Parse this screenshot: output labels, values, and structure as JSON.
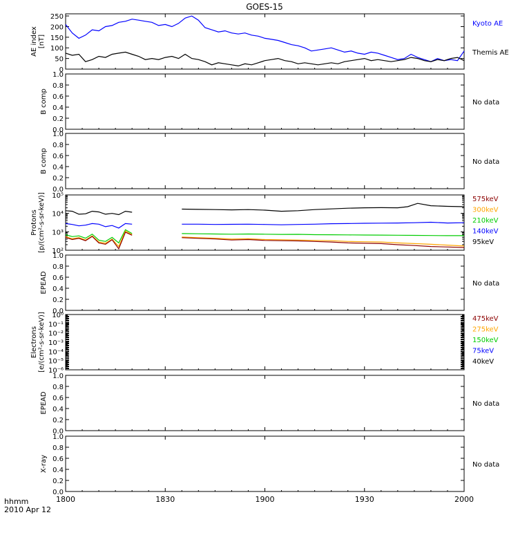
{
  "title": "GOES-15",
  "footer": {
    "time_label": "hhmm",
    "date_label": "2010 Apr 12"
  },
  "x_axis": {
    "range": [
      0,
      120
    ],
    "tick_labels": [
      "1800",
      "1830",
      "1900",
      "1930",
      "2000"
    ],
    "tick_values": [
      0,
      30,
      60,
      90,
      120
    ]
  },
  "panels": [
    {
      "id": "ae",
      "ylabel": [
        "AE index",
        "[nT]"
      ],
      "yscale": "linear",
      "ylim": [
        0,
        260
      ],
      "yticks": [
        0,
        50,
        100,
        150,
        200,
        250
      ],
      "ytick_labels": [
        "0",
        "50",
        "100",
        "150",
        "200",
        "250"
      ],
      "legend": [
        {
          "label": "Kyoto AE",
          "color": "#0000ff"
        },
        {
          "label": "Themis AE",
          "color": "#000000"
        }
      ],
      "no_data": ""
    },
    {
      "id": "b1",
      "ylabel": [
        "B comp"
      ],
      "yscale": "linear",
      "ylim": [
        0,
        1
      ],
      "yticks": [
        0,
        0.2,
        0.4,
        0.6,
        0.8,
        1
      ],
      "ytick_labels": [
        "0.0",
        "0.2",
        "0.4",
        "0.6",
        "0.8",
        "1.0"
      ],
      "legend": [],
      "no_data": "No data"
    },
    {
      "id": "b2",
      "ylabel": [
        "B comp"
      ],
      "yscale": "linear",
      "ylim": [
        0,
        1
      ],
      "yticks": [
        0,
        0.2,
        0.4,
        0.6,
        0.8,
        1
      ],
      "ytick_labels": [
        "0.0",
        "0.2",
        "0.4",
        "0.6",
        "0.8",
        "1.0"
      ],
      "legend": [],
      "no_data": "No data"
    },
    {
      "id": "protons",
      "ylabel": [
        "Protons",
        "[p/(cm²-s-sr-keV)]"
      ],
      "yscale": "log",
      "ylim": [
        100,
        100000
      ],
      "yticks": [
        100,
        1000,
        10000,
        100000
      ],
      "ytick_labels": [
        "10²",
        "10³",
        "10⁴",
        "10⁵"
      ],
      "legend": [
        {
          "label": "575keV",
          "color": "#8b0000"
        },
        {
          "label": "300keV",
          "color": "#ffa500"
        },
        {
          "label": "210keV",
          "color": "#00cc00"
        },
        {
          "label": "140keV",
          "color": "#0000ff"
        },
        {
          "label": "95keV",
          "color": "#000000"
        }
      ],
      "no_data": ""
    },
    {
      "id": "epead1",
      "ylabel": [
        "EPEAD"
      ],
      "yscale": "linear",
      "ylim": [
        0,
        1
      ],
      "yticks": [
        0,
        0.2,
        0.4,
        0.6,
        0.8,
        1
      ],
      "ytick_labels": [
        "0.0",
        "0.2",
        "0.4",
        "0.6",
        "0.8",
        "1.0"
      ],
      "legend": [],
      "no_data": "No data"
    },
    {
      "id": "electrons",
      "ylabel": [
        "Electrons",
        "[e/(cm²-s-sr-keV)]"
      ],
      "yscale": "log",
      "ylim": [
        1e-06,
        1
      ],
      "yticks": [
        1e-06,
        1e-05,
        0.0001,
        0.001,
        0.01,
        0.1,
        1
      ],
      "ytick_labels": [
        "10⁻⁶",
        "10⁻⁵",
        "10⁻⁴",
        "10⁻³",
        "10⁻²",
        "10⁻¹",
        "10⁰"
      ],
      "legend": [
        {
          "label": "475keV",
          "color": "#8b0000"
        },
        {
          "label": "275keV",
          "color": "#ffa500"
        },
        {
          "label": "150keV",
          "color": "#00cc00"
        },
        {
          "label": "75keV",
          "color": "#0000ff"
        },
        {
          "label": "40keV",
          "color": "#000000"
        }
      ],
      "no_data": ""
    },
    {
      "id": "epead2",
      "ylabel": [
        "EPEAD"
      ],
      "yscale": "linear",
      "ylim": [
        0,
        1
      ],
      "yticks": [
        0,
        0.2,
        0.4,
        0.6,
        0.8,
        1
      ],
      "ytick_labels": [
        "0.0",
        "0.2",
        "0.4",
        "0.6",
        "0.8",
        "1.0"
      ],
      "legend": [],
      "no_data": "No data"
    },
    {
      "id": "xray",
      "ylabel": [
        "X-ray"
      ],
      "yscale": "linear",
      "ylim": [
        0,
        1
      ],
      "yticks": [
        0,
        0.2,
        0.4,
        0.6,
        0.8,
        1
      ],
      "ytick_labels": [
        "0.0",
        "0.2",
        "0.4",
        "0.6",
        "0.8",
        "1.0"
      ],
      "legend": [],
      "no_data": "No data"
    }
  ],
  "chart_data": [
    {
      "type": "line",
      "panel": "ae",
      "title": "GOES-15",
      "xlim": [
        0,
        120
      ],
      "ylim": [
        0,
        260
      ],
      "series": [
        {
          "name": "Kyoto AE",
          "color": "#0000ff",
          "segments": [
            {
              "x": [
                0,
                2,
                4,
                6,
                8,
                10,
                12,
                14,
                16,
                18,
                20,
                22,
                24,
                26,
                28,
                30,
                32,
                34,
                36,
                38,
                40,
                42,
                44,
                46,
                48,
                50,
                52,
                54,
                56,
                58,
                60,
                62,
                64,
                66,
                68,
                70,
                72,
                74,
                76,
                78,
                80,
                82,
                84,
                86,
                88,
                90,
                92,
                94,
                96,
                98,
                100,
                102,
                104,
                106,
                108,
                110,
                112,
                114,
                116,
                118,
                120
              ],
              "y": [
                210,
                170,
                145,
                160,
                185,
                180,
                200,
                205,
                220,
                225,
                235,
                230,
                225,
                220,
                205,
                210,
                200,
                215,
                240,
                250,
                230,
                195,
                185,
                175,
                180,
                170,
                165,
                170,
                160,
                155,
                145,
                140,
                135,
                125,
                115,
                110,
                100,
                85,
                90,
                95,
                100,
                90,
                80,
                85,
                75,
                70,
                80,
                75,
                65,
                55,
                45,
                50,
                70,
                55,
                45,
                35,
                50,
                40,
                45,
                40,
                85
              ]
            }
          ]
        },
        {
          "name": "Themis AE",
          "color": "#000000",
          "segments": [
            {
              "x": [
                0,
                2,
                4,
                6,
                8,
                10,
                12,
                14,
                16,
                18,
                20,
                22,
                24,
                26,
                28,
                30,
                32,
                34,
                36,
                38,
                40,
                42,
                44,
                46,
                48,
                50,
                52,
                54,
                56,
                58,
                60,
                62,
                64,
                66,
                68,
                70,
                72,
                74,
                76,
                78,
                80,
                82,
                84,
                86,
                88,
                90,
                92,
                94,
                96,
                98,
                100,
                102,
                104,
                106,
                108,
                110,
                112,
                114,
                116,
                118,
                120
              ],
              "y": [
                75,
                65,
                70,
                35,
                45,
                60,
                55,
                70,
                75,
                80,
                70,
                60,
                45,
                50,
                45,
                55,
                60,
                50,
                70,
                50,
                45,
                35,
                20,
                30,
                25,
                20,
                15,
                25,
                20,
                30,
                40,
                45,
                50,
                40,
                35,
                25,
                30,
                25,
                20,
                25,
                30,
                25,
                35,
                40,
                45,
                50,
                40,
                45,
                40,
                35,
                40,
                45,
                55,
                50,
                40,
                35,
                45,
                40,
                50,
                55,
                40
              ]
            }
          ]
        }
      ]
    },
    {
      "type": "line",
      "panel": "protons",
      "yscale": "log",
      "xlim": [
        0,
        120
      ],
      "ylim": [
        100,
        100000
      ],
      "series": [
        {
          "name": "95keV",
          "color": "#000000",
          "segments": [
            {
              "x": [
                0,
                2,
                4,
                6,
                8,
                10,
                12,
                14,
                16,
                18,
                20
              ],
              "y": [
                14000,
                13000,
                9000,
                9500,
                13000,
                12000,
                9000,
                10000,
                8500,
                13000,
                11500
              ]
            },
            {
              "x": [
                35,
                40,
                45,
                50,
                55,
                60,
                65,
                70,
                75,
                80,
                85,
                90,
                95,
                100,
                103,
                106,
                110,
                115,
                120
              ],
              "y": [
                17000,
                16500,
                16000,
                15500,
                16000,
                15000,
                13000,
                14000,
                16000,
                17500,
                19000,
                20000,
                20500,
                20000,
                23000,
                35000,
                26000,
                24000,
                23000
              ]
            }
          ]
        },
        {
          "name": "140keV",
          "color": "#0000ff",
          "segments": [
            {
              "x": [
                0,
                2,
                4,
                6,
                8,
                10,
                12,
                14,
                16,
                18,
                20
              ],
              "y": [
                2800,
                2500,
                2100,
                2300,
                2800,
                2600,
                1900,
                2200,
                1600,
                2800,
                2600
              ]
            },
            {
              "x": [
                35,
                40,
                45,
                50,
                55,
                60,
                65,
                70,
                75,
                80,
                85,
                90,
                95,
                100,
                105,
                110,
                115,
                120
              ],
              "y": [
                2600,
                2600,
                2500,
                2550,
                2600,
                2500,
                2400,
                2500,
                2600,
                2750,
                2800,
                2900,
                2950,
                3000,
                3100,
                3300,
                3000,
                3100
              ]
            }
          ]
        },
        {
          "name": "210keV",
          "color": "#00cc00",
          "segments": [
            {
              "x": [
                0,
                2,
                4,
                6,
                8,
                10,
                12,
                14,
                16,
                18,
                20
              ],
              "y": [
                700,
                550,
                600,
                450,
                750,
                350,
                300,
                500,
                250,
                1300,
                800
              ]
            },
            {
              "x": [
                35,
                40,
                45,
                50,
                55,
                60,
                65,
                70,
                75,
                80,
                85,
                90,
                95,
                100,
                105,
                110,
                115,
                120
              ],
              "y": [
                800,
                780,
                760,
                740,
                760,
                740,
                720,
                730,
                700,
                690,
                680,
                670,
                660,
                650,
                640,
                630,
                620,
                620
              ]
            }
          ]
        },
        {
          "name": "300keV",
          "color": "#ffa500",
          "segments": [
            {
              "x": [
                0,
                2,
                4,
                6,
                8,
                10,
                12,
                14,
                16,
                18,
                20
              ],
              "y": [
                550,
                420,
                480,
                360,
                600,
                280,
                240,
                400,
                160,
                1100,
                700
              ]
            },
            {
              "x": [
                35,
                40,
                45,
                50,
                55,
                60,
                65,
                70,
                75,
                80,
                85,
                90,
                95,
                100,
                105,
                110,
                115,
                120
              ],
              "y": [
                520,
                480,
                450,
                400,
                420,
                380,
                370,
                360,
                340,
                330,
                300,
                290,
                280,
                250,
                230,
                210,
                190,
                170
              ]
            }
          ]
        },
        {
          "name": "575keV",
          "color": "#8b0000",
          "segments": [
            {
              "x": [
                0,
                2,
                4,
                6,
                8,
                10,
                12,
                14,
                16,
                18,
                20
              ],
              "y": [
                500,
                380,
                440,
                330,
                560,
                250,
                210,
                370,
                120,
                950,
                650
              ]
            },
            {
              "x": [
                35,
                40,
                45,
                50,
                55,
                60,
                65,
                70,
                75,
                80,
                85,
                90,
                95,
                100,
                105,
                110,
                115,
                120
              ],
              "y": [
                480,
                440,
                410,
                360,
                380,
                340,
                330,
                320,
                300,
                280,
                250,
                240,
                230,
                200,
                180,
                160,
                150,
                140
              ]
            }
          ]
        }
      ]
    }
  ]
}
